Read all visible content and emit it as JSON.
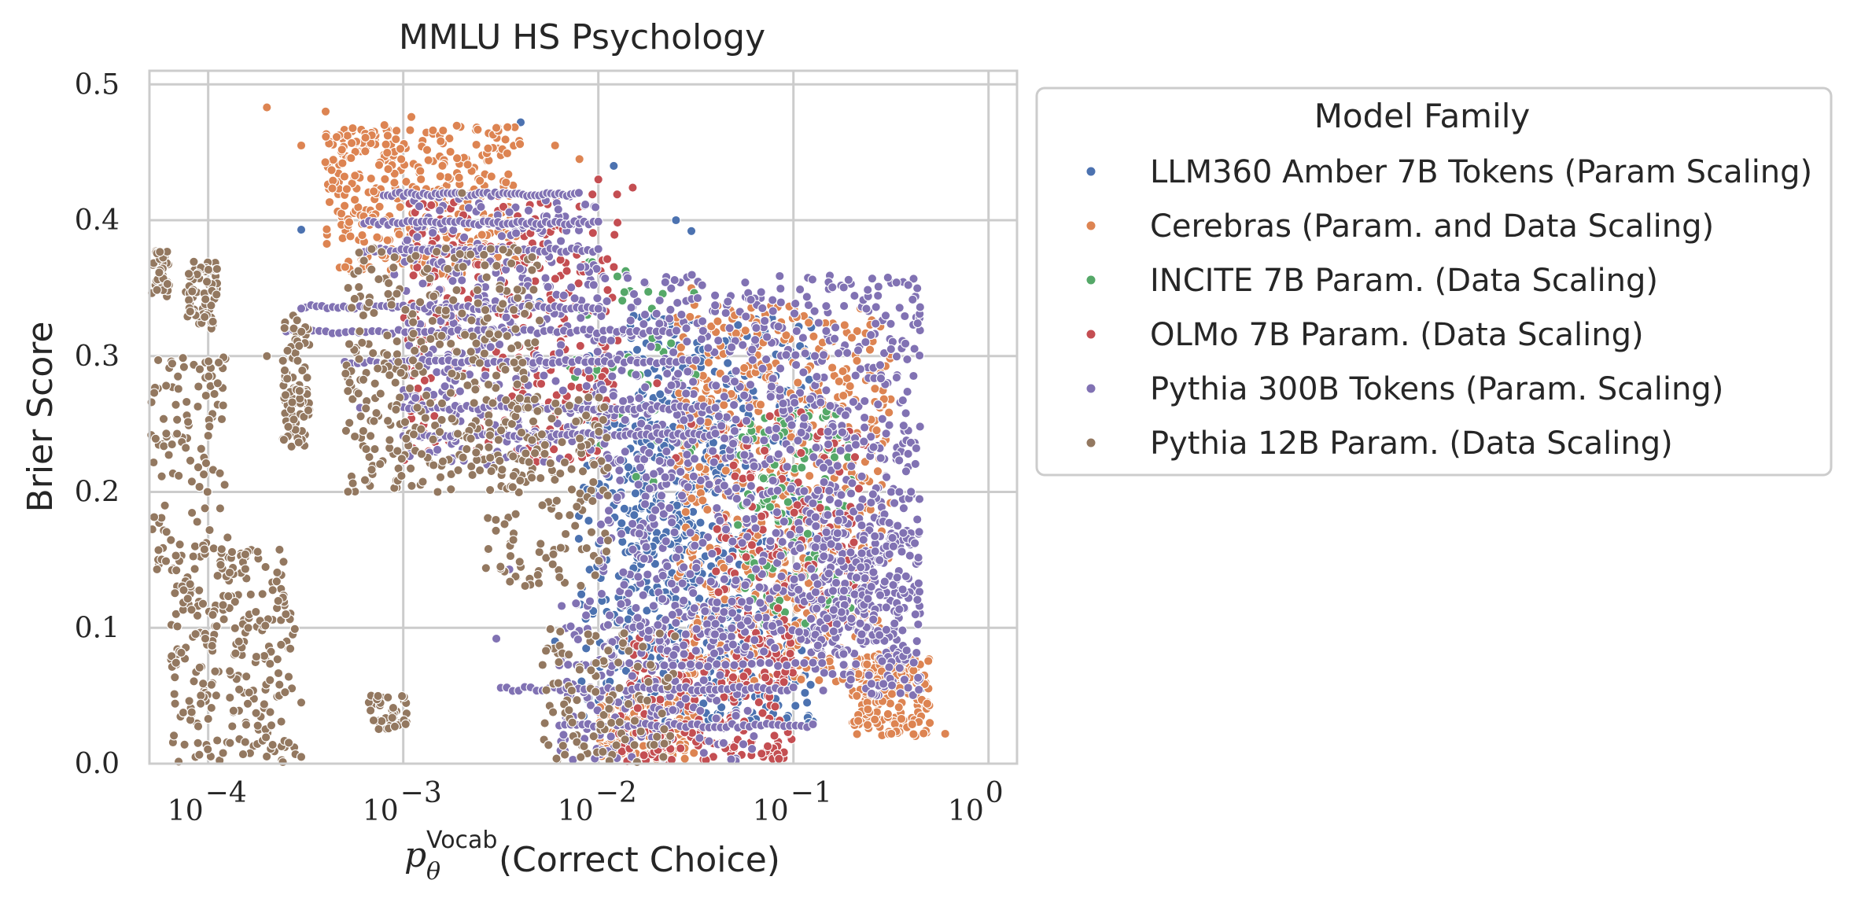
{
  "chart_data": {
    "type": "scatter",
    "title": "MMLU HS Psychology",
    "xlabel_main": "p",
    "xlabel_sub": "θ",
    "xlabel_sup": "Vocab",
    "xlabel_rest": "(Correct Choice)",
    "ylabel": "Brier Score",
    "xscale": "log",
    "xlim": [
      5e-05,
      1.4
    ],
    "ylim": [
      0.0,
      0.51
    ],
    "x_ticks": [
      {
        "value": 0.0001,
        "base": "10",
        "exp": "−4"
      },
      {
        "value": 0.001,
        "base": "10",
        "exp": "−3"
      },
      {
        "value": 0.01,
        "base": "10",
        "exp": "−2"
      },
      {
        "value": 0.1,
        "base": "10",
        "exp": "−1"
      },
      {
        "value": 1,
        "base": "10",
        "exp": "0"
      }
    ],
    "y_ticks": [
      {
        "value": 0.0,
        "label": "0.0"
      },
      {
        "value": 0.1,
        "label": "0.1"
      },
      {
        "value": 0.2,
        "label": "0.2"
      },
      {
        "value": 0.3,
        "label": "0.3"
      },
      {
        "value": 0.4,
        "label": "0.4"
      },
      {
        "value": 0.5,
        "label": "0.5"
      }
    ],
    "grid": true,
    "legend": {
      "title": "Model Family",
      "placement": "outside-right"
    },
    "series": [
      {
        "name": "LLM360 Amber 7B Tokens (Param Scaling)",
        "color": "#4c72b0",
        "clusters": [
          {
            "logx": [
              -2.1,
              -0.9
            ],
            "y": [
              0.03,
              0.33
            ],
            "n": 650
          },
          {
            "logx": [
              -1.9,
              -1.3
            ],
            "y": [
              0.05,
              0.25
            ],
            "n": 200
          }
        ],
        "points": [
          [
            0.0003,
            0.393
          ],
          [
            0.004,
            0.472
          ],
          [
            0.012,
            0.44
          ],
          [
            0.025,
            0.4
          ],
          [
            0.03,
            0.392
          ],
          [
            0.005,
            0.34
          ],
          [
            0.009,
            0.3
          ],
          [
            0.016,
            0.21
          ],
          [
            0.02,
            0.13
          ],
          [
            0.04,
            0.06
          ],
          [
            0.12,
            0.03
          ],
          [
            0.35,
            0.055
          ],
          [
            0.45,
            0.055
          ],
          [
            0.006,
            0.09
          ],
          [
            0.011,
            0.15
          ]
        ]
      },
      {
        "name": "Cerebras (Param. and Data Scaling)",
        "color": "#dd8452",
        "clusters": [
          {
            "logx": [
              -3.4,
              -2.4
            ],
            "y": [
              0.36,
              0.47
            ],
            "n": 380
          },
          {
            "logx": [
              -1.6,
              -0.5
            ],
            "y": [
              0.06,
              0.34
            ],
            "n": 620
          },
          {
            "logx": [
              -0.7,
              -0.3
            ],
            "y": [
              0.02,
              0.08
            ],
            "n": 160
          },
          {
            "logx": [
              -2.0,
              -1.5
            ],
            "y": [
              0.0,
              0.05
            ],
            "n": 150
          }
        ],
        "points": [
          [
            0.0002,
            0.483
          ],
          [
            0.0003,
            0.455
          ],
          [
            0.0004,
            0.48
          ],
          [
            0.0008,
            0.47
          ],
          [
            0.0011,
            0.476
          ],
          [
            0.0016,
            0.466
          ],
          [
            0.003,
            0.468
          ],
          [
            0.006,
            0.455
          ],
          [
            0.008,
            0.445
          ],
          [
            0.6,
            0.022
          ],
          [
            0.5,
            0.03
          ],
          [
            0.03,
            0.35
          ],
          [
            0.05,
            0.33
          ],
          [
            0.07,
            0.31
          ]
        ]
      },
      {
        "name": "INCITE 7B Param. (Data Scaling)",
        "color": "#55a868",
        "clusters": [
          {
            "logx": [
              -1.3,
              -0.7
            ],
            "y": [
              0.1,
              0.26
            ],
            "n": 140
          },
          {
            "logx": [
              -2.2,
              -1.5
            ],
            "y": [
              0.2,
              0.38
            ],
            "n": 50
          }
        ],
        "points": [
          [
            0.08,
            0.22
          ],
          [
            0.12,
            0.15
          ],
          [
            0.06,
            0.25
          ],
          [
            0.15,
            0.12
          ],
          [
            0.1,
            0.2
          ]
        ]
      },
      {
        "name": "OLMo 7B Param. (Data Scaling)",
        "color": "#c44e52",
        "clusters": [
          {
            "logx": [
              -3.0,
              -1.9
            ],
            "y": [
              0.22,
              0.42
            ],
            "n": 320
          },
          {
            "logx": [
              -1.9,
              -1.0
            ],
            "y": [
              0.0,
              0.1
            ],
            "n": 240
          },
          {
            "logx": [
              -1.4,
              -0.6
            ],
            "y": [
              0.1,
              0.26
            ],
            "n": 160
          }
        ],
        "points": [
          [
            0.01,
            0.43
          ],
          [
            0.015,
            0.424
          ],
          [
            0.008,
            0.41
          ],
          [
            0.02,
            0.28
          ],
          [
            0.03,
            0.25
          ],
          [
            0.025,
            0.225
          ],
          [
            0.04,
            0.225
          ],
          [
            0.06,
            0.17
          ],
          [
            0.05,
            0.14
          ]
        ]
      },
      {
        "name": "Pythia 300B Tokens (Param. Scaling)",
        "color": "#8172b3",
        "bands": [
          {
            "logx": [
              -3.1,
              -2.1
            ],
            "y": 0.419,
            "n": 50
          },
          {
            "logx": [
              -3.2,
              -2.0
            ],
            "y": 0.398,
            "n": 50
          },
          {
            "logx": [
              -3.2,
              -2.0
            ],
            "y": 0.378,
            "n": 45
          },
          {
            "logx": [
              -3.5,
              -2.0
            ],
            "y": 0.336,
            "n": 55
          },
          {
            "logx": [
              -3.6,
              -1.6
            ],
            "y": 0.318,
            "n": 60
          },
          {
            "logx": [
              -3.3,
              -1.5
            ],
            "y": 0.296,
            "n": 55
          },
          {
            "logx": [
              -3.0,
              -1.4
            ],
            "y": 0.262,
            "n": 55
          },
          {
            "logx": [
              -3.0,
              -1.4
            ],
            "y": 0.242,
            "n": 60
          },
          {
            "logx": [
              -2.5,
              -1.0
            ],
            "y": 0.055,
            "n": 50
          },
          {
            "logx": [
              -2.2,
              -0.9
            ],
            "y": 0.028,
            "n": 45
          },
          {
            "logx": [
              -2.2,
              -0.9
            ],
            "y": 0.073,
            "n": 30
          }
        ],
        "clusters": [
          {
            "logx": [
              -3.0,
              -2.0
            ],
            "y": [
              0.22,
              0.42
            ],
            "n": 340
          },
          {
            "logx": [
              -2.0,
              -0.35
            ],
            "y": [
              0.08,
              0.36
            ],
            "n": 900
          },
          {
            "logx": [
              -0.9,
              -0.35
            ],
            "y": [
              0.05,
              0.18
            ],
            "n": 260
          },
          {
            "logx": [
              -2.2,
              -1.2
            ],
            "y": [
              0.0,
              0.12
            ],
            "n": 180
          }
        ],
        "points": [
          [
            0.0003,
            0.335
          ],
          [
            0.0006,
            0.262
          ],
          [
            0.0009,
            0.36
          ],
          [
            0.0011,
            0.33
          ],
          [
            0.0035,
            0.143
          ],
          [
            0.003,
            0.092
          ]
        ]
      },
      {
        "name": "Pythia 12B Param. (Data Scaling)",
        "color": "#937860",
        "clusters": [
          {
            "logx": [
              -4.3,
              -4.2
            ],
            "y": [
              0.34,
              0.38
            ],
            "n": 45
          },
          {
            "logx": [
              -4.12,
              -3.95
            ],
            "y": [
              0.32,
              0.37
            ],
            "n": 70
          },
          {
            "logx": [
              -3.62,
              -3.48
            ],
            "y": [
              0.23,
              0.33
            ],
            "n": 90
          },
          {
            "logx": [
              -4.3,
              -3.9
            ],
            "y": [
              0.14,
              0.3
            ],
            "n": 110
          },
          {
            "logx": [
              -4.2,
              -3.55
            ],
            "y": [
              0.0,
              0.16
            ],
            "n": 260
          },
          {
            "logx": [
              -3.18,
              -2.98
            ],
            "y": [
              0.025,
              0.05
            ],
            "n": 40
          },
          {
            "logx": [
              -3.3,
              -2.3
            ],
            "y": [
              0.2,
              0.38
            ],
            "n": 330
          },
          {
            "logx": [
              -2.6,
              -1.95
            ],
            "y": [
              0.13,
              0.27
            ],
            "n": 140
          },
          {
            "logx": [
              -2.3,
              -1.6
            ],
            "y": [
              0.0,
              0.1
            ],
            "n": 110
          }
        ],
        "points": [
          [
            5e-05,
            0.32
          ],
          [
            5e-05,
            0.25
          ],
          [
            7e-05,
            0.285
          ],
          [
            6e-05,
            0.19
          ],
          [
            0.0003,
            0.045
          ],
          [
            0.0002,
            0.3
          ],
          [
            0.00025,
            0.11
          ],
          [
            0.0003,
            0.005
          ],
          [
            0.002,
            0.42
          ],
          [
            0.0015,
            0.2
          ]
        ]
      }
    ]
  }
}
